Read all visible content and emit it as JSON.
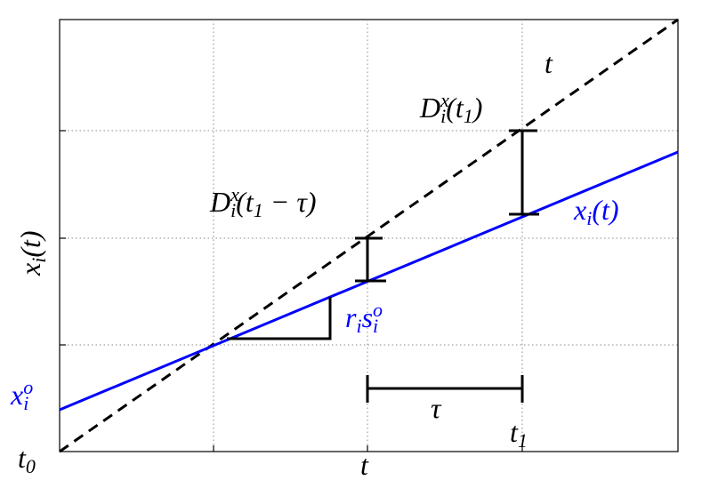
{
  "labels": {
    "dashed_line": {
      "color": "#000000",
      "parts": [
        {
          "text": "t",
          "pos": "main"
        }
      ]
    },
    "gap_t1": {
      "color": "#000000",
      "parts": [
        {
          "text": "D",
          "pos": "main"
        },
        {
          "text": "x",
          "pos": "sup"
        },
        {
          "text": "i",
          "pos": "sub-stacked"
        },
        {
          "text": "(t",
          "pos": "main"
        },
        {
          "text": "1",
          "pos": "sub"
        },
        {
          "text": ")",
          "pos": "main"
        }
      ]
    },
    "gap_t1_tau": {
      "color": "#000000",
      "parts": [
        {
          "text": "D",
          "pos": "main"
        },
        {
          "text": "x",
          "pos": "sup"
        },
        {
          "text": "i",
          "pos": "sub-stacked"
        },
        {
          "text": "(t",
          "pos": "main"
        },
        {
          "text": "1",
          "pos": "sub"
        },
        {
          "text": " − τ)",
          "pos": "main"
        }
      ]
    },
    "blue_line": {
      "color": "#0000ff",
      "parts": [
        {
          "text": "x",
          "pos": "main"
        },
        {
          "text": "i",
          "pos": "sub"
        },
        {
          "text": "(t)",
          "pos": "main"
        }
      ]
    },
    "y_axis": {
      "color": "#000000",
      "parts": [
        {
          "text": "x",
          "pos": "main"
        },
        {
          "text": "i",
          "pos": "sub"
        },
        {
          "text": "(t)",
          "pos": "main"
        }
      ]
    },
    "slope": {
      "color": "#0000ff",
      "parts": [
        {
          "text": "r",
          "pos": "main"
        },
        {
          "text": "i",
          "pos": "sub"
        },
        {
          "text": "s",
          "pos": "main"
        },
        {
          "text": "o",
          "pos": "sup"
        },
        {
          "text": "i",
          "pos": "sub-stacked"
        }
      ]
    },
    "intercept": {
      "color": "#0000ff",
      "parts": [
        {
          "text": "x",
          "pos": "main"
        },
        {
          "text": "o",
          "pos": "sup"
        },
        {
          "text": "i",
          "pos": "sub-stacked"
        }
      ]
    },
    "origin": {
      "color": "#000000",
      "parts": [
        {
          "text": "t",
          "pos": "main"
        },
        {
          "text": "0",
          "pos": "sub"
        }
      ]
    },
    "x_axis": {
      "color": "#000000",
      "parts": [
        {
          "text": "t",
          "pos": "main"
        }
      ]
    },
    "tau": {
      "color": "#000000",
      "parts": [
        {
          "text": "τ",
          "pos": "main"
        }
      ]
    },
    "t1": {
      "color": "#000000",
      "parts": [
        {
          "text": "t",
          "pos": "main"
        },
        {
          "text": "1",
          "pos": "sub"
        }
      ]
    }
  }
}
